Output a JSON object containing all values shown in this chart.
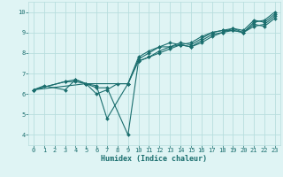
{
  "xlabel": "Humidex (Indice chaleur)",
  "bg_color": "#dff4f4",
  "grid_color": "#b8dede",
  "line_color": "#1a6e6e",
  "xlim": [
    -0.5,
    23.5
  ],
  "ylim": [
    3.5,
    10.5
  ],
  "xticks": [
    0,
    1,
    2,
    3,
    4,
    5,
    6,
    7,
    8,
    9,
    10,
    11,
    12,
    13,
    14,
    15,
    16,
    17,
    18,
    19,
    20,
    21,
    22,
    23
  ],
  "yticks": [
    4,
    5,
    6,
    7,
    8,
    9,
    10
  ],
  "series": [
    {
      "x": [
        0,
        1,
        3,
        4,
        5,
        6,
        7,
        8,
        9,
        10,
        11,
        12,
        13,
        14,
        15,
        16,
        17,
        18,
        19,
        20,
        21,
        22,
        23
      ],
      "y": [
        6.2,
        6.4,
        6.2,
        6.7,
        6.5,
        6.0,
        6.2,
        6.5,
        6.5,
        7.7,
        8.0,
        8.3,
        8.3,
        8.5,
        8.4,
        8.7,
        9.0,
        9.1,
        9.1,
        9.0,
        9.5,
        9.6,
        10.0
      ]
    },
    {
      "x": [
        0,
        3,
        4,
        5,
        9,
        10,
        11,
        12,
        13,
        14,
        15,
        16,
        17,
        18,
        19,
        20,
        21,
        22,
        23
      ],
      "y": [
        6.2,
        6.6,
        6.6,
        6.5,
        6.5,
        7.8,
        8.1,
        8.3,
        8.5,
        8.4,
        8.5,
        8.8,
        9.0,
        9.1,
        9.2,
        9.1,
        9.6,
        9.5,
        9.9
      ]
    },
    {
      "x": [
        0,
        3,
        4,
        5,
        6,
        7,
        9,
        10,
        11,
        12,
        13,
        14,
        15,
        16,
        17,
        18,
        19,
        20,
        21,
        22,
        23
      ],
      "y": [
        6.2,
        6.6,
        6.7,
        6.5,
        6.3,
        6.3,
        4.0,
        7.6,
        7.8,
        8.0,
        8.2,
        8.4,
        8.3,
        8.5,
        8.8,
        9.0,
        9.1,
        9.0,
        9.3,
        9.4,
        9.8
      ]
    },
    {
      "x": [
        0,
        5,
        6,
        7,
        9,
        10,
        11,
        12,
        13,
        14,
        15,
        16,
        17,
        18,
        19,
        20,
        21,
        22,
        23
      ],
      "y": [
        6.2,
        6.5,
        6.4,
        4.8,
        6.5,
        7.6,
        7.8,
        8.1,
        8.3,
        8.4,
        8.3,
        8.6,
        8.9,
        9.0,
        9.2,
        9.0,
        9.4,
        9.3,
        9.7
      ]
    }
  ]
}
